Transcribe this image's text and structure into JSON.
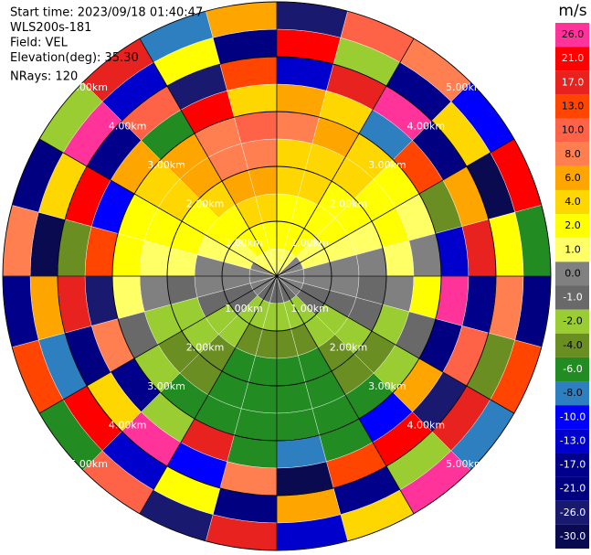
{
  "chart_data": {
    "type": "polar",
    "info": [
      "Start time: 2023/09/18 01:40:47",
      "WLS200s-181",
      "Field: VEL",
      "Elevation(deg): 35.30",
      "NRays: 120"
    ],
    "rlim": [
      0,
      5
    ],
    "rings": [
      {
        "value": 1,
        "label": "1.00km"
      },
      {
        "value": 2,
        "label": "2.00km"
      },
      {
        "value": 3,
        "label": "3.00km"
      },
      {
        "value": 4,
        "label": "4.00km"
      },
      {
        "value": 5,
        "label": "5.00km"
      }
    ],
    "azimuths": [
      7.5,
      22.5,
      37.5,
      52.5,
      67.5,
      82.5,
      97.5,
      112.5,
      127.5,
      142.5,
      157.5,
      172.5,
      187.5,
      202.5,
      217.5,
      232.5,
      247.5,
      262.5,
      277.5,
      292.5,
      307.5,
      322.5,
      337.5,
      352.5
    ],
    "ranges": [
      0.25,
      0.75,
      1.25,
      1.75,
      2.25,
      2.75,
      3.25,
      3.75,
      4.25,
      4.75
    ],
    "values": [
      [
        1,
        2,
        3,
        4,
        5,
        8,
        6,
        -13,
        21,
        -26
      ],
      [
        1,
        2,
        3,
        4,
        5,
        6,
        4,
        17,
        -2,
        10
      ],
      [
        1,
        2,
        2,
        3,
        4,
        4,
        -8,
        26,
        -17,
        8
      ],
      [
        0,
        1,
        2,
        2,
        3,
        2,
        13,
        -21,
        4,
        -10
      ],
      [
        0,
        1,
        1,
        1,
        2,
        1,
        -4,
        6,
        -30,
        21
      ],
      [
        0,
        0,
        0,
        0,
        1,
        0,
        -13,
        17,
        2,
        -6
      ],
      [
        0,
        0,
        0,
        -1,
        0,
        2,
        26,
        -17,
        8,
        -21
      ],
      [
        0,
        -1,
        -1,
        -1,
        -2,
        -1,
        -21,
        10,
        -4,
        13
      ],
      [
        0,
        -1,
        -2,
        -2,
        -4,
        -2,
        6,
        -26,
        17,
        -8
      ],
      [
        -1,
        -2,
        -2,
        -4,
        -4,
        -6,
        -10,
        21,
        -2,
        26
      ],
      [
        -1,
        -2,
        -4,
        -6,
        -6,
        -6,
        -6,
        13,
        -17,
        4
      ],
      [
        -1,
        -2,
        -4,
        -6,
        -6,
        -6,
        -8,
        -30,
        6,
        -13
      ],
      [
        -1,
        -2,
        -4,
        -6,
        -6,
        -6,
        -6,
        8,
        -21,
        17
      ],
      [
        -1,
        -2,
        -4,
        -6,
        -6,
        -6,
        17,
        -10,
        2,
        -26
      ],
      [
        -1,
        -2,
        -2,
        -4,
        -4,
        -6,
        -2,
        26,
        -13,
        10
      ],
      [
        0,
        -1,
        -2,
        -2,
        -4,
        -2,
        -17,
        4,
        21,
        -6
      ],
      [
        0,
        -1,
        -1,
        -2,
        -2,
        -1,
        8,
        -21,
        -8,
        13
      ],
      [
        0,
        0,
        0,
        -1,
        0,
        1,
        -26,
        17,
        6,
        -17
      ],
      [
        0,
        0,
        0,
        1,
        1,
        2,
        13,
        -4,
        -30,
        8
      ],
      [
        0,
        1,
        1,
        2,
        2,
        2,
        -10,
        21,
        4,
        -21
      ],
      [
        1,
        1,
        2,
        2,
        4,
        4,
        6,
        -17,
        26,
        -2
      ],
      [
        1,
        2,
        2,
        4,
        6,
        6,
        -6,
        10,
        -13,
        17
      ],
      [
        1,
        2,
        4,
        6,
        8,
        8,
        21,
        -26,
        2,
        -8
      ],
      [
        1,
        2,
        4,
        6,
        8,
        10,
        4,
        13,
        -21,
        6
      ]
    ],
    "colorbar": {
      "title": "m/s",
      "levels": [
        {
          "value": 26,
          "label": "26.0",
          "color": "#ff3399"
        },
        {
          "value": 21,
          "label": "21.0",
          "color": "#ff0000"
        },
        {
          "value": 17,
          "label": "17.0",
          "color": "#e8221e"
        },
        {
          "value": 13,
          "label": "13.0",
          "color": "#ff4500"
        },
        {
          "value": 10,
          "label": "10.0",
          "color": "#ff6347"
        },
        {
          "value": 8,
          "label": "8.0",
          "color": "#ff7f50"
        },
        {
          "value": 6,
          "label": "6.0",
          "color": "#ffa500"
        },
        {
          "value": 4,
          "label": "4.0",
          "color": "#ffd700"
        },
        {
          "value": 2,
          "label": "2.0",
          "color": "#ffff00"
        },
        {
          "value": 1,
          "label": "1.0",
          "color": "#ffff66"
        },
        {
          "value": 0,
          "label": "0.0",
          "color": "#808080"
        },
        {
          "value": -1,
          "label": "-1.0",
          "color": "#696969"
        },
        {
          "value": -2,
          "label": "-2.0",
          "color": "#9acd32"
        },
        {
          "value": -4,
          "label": "-4.0",
          "color": "#6b8e23"
        },
        {
          "value": -6,
          "label": "-6.0",
          "color": "#228b22"
        },
        {
          "value": -8,
          "label": "-8.0",
          "color": "#2e7fbf"
        },
        {
          "value": -10,
          "label": "-10.0",
          "color": "#0000ff"
        },
        {
          "value": -13,
          "label": "-13.0",
          "color": "#0000cd"
        },
        {
          "value": -17,
          "label": "-17.0",
          "color": "#00008b"
        },
        {
          "value": -21,
          "label": "-21.0",
          "color": "#000080"
        },
        {
          "value": -26,
          "label": "-26.0",
          "color": "#191970"
        },
        {
          "value": -30,
          "label": "-30.0",
          "color": "#0a0a50"
        }
      ]
    }
  }
}
